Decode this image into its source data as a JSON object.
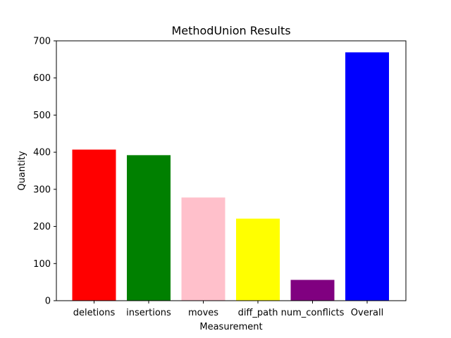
{
  "chart_data": {
    "type": "bar",
    "title": "MethodUnion Results",
    "xlabel": "Measurement",
    "ylabel": "Quantity",
    "categories": [
      "deletions",
      "insertions",
      "moves",
      "diff_path",
      "num_conflicts",
      "Overall"
    ],
    "values": [
      407,
      392,
      278,
      221,
      56,
      669
    ],
    "colors": [
      "#ff0000",
      "#008000",
      "#ffc0cb",
      "#ffff00",
      "#800080",
      "#0000ff"
    ],
    "ylim": [
      0,
      700
    ],
    "yticks": [
      0,
      100,
      200,
      300,
      400,
      500,
      600,
      700
    ],
    "grid": false,
    "legend": "none"
  }
}
